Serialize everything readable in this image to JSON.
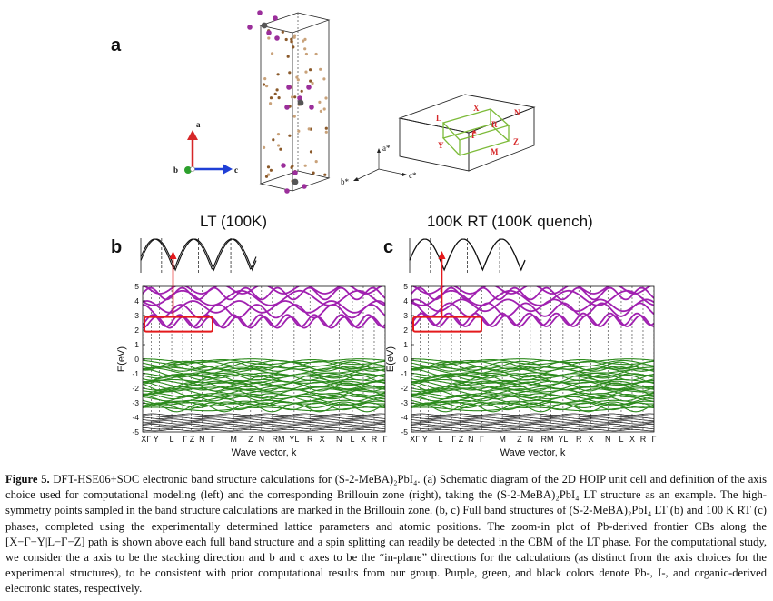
{
  "panel_a": {
    "letter": "a",
    "axes_left": {
      "a": "a",
      "b": "b",
      "c": "c"
    },
    "axes_right": {
      "a": "a*",
      "b": "b*",
      "c": "c*"
    },
    "bz_points": [
      "X",
      "N",
      "L",
      "R",
      "Γ",
      "Y",
      "M",
      "Z"
    ]
  },
  "panel_b": {
    "letter": "b",
    "title": "LT (100K)"
  },
  "panel_c": {
    "letter": "c",
    "title": "100K RT (100K quench)"
  },
  "chart_data": {
    "type": "line",
    "ylabel": "E(eV)",
    "xlabel": "Wave vector, k",
    "ylim": [
      -5,
      5
    ],
    "yticks": [
      5,
      4,
      3,
      2,
      1,
      0,
      -1,
      -2,
      -3,
      -4,
      -5
    ],
    "kpath_labels": [
      "X",
      "Γ",
      "Y",
      "L",
      "Γ",
      "Z",
      "N",
      "Γ",
      "M",
      "Z",
      "N",
      "RM",
      "YL",
      "R",
      "X",
      "N",
      "L",
      "X",
      "R",
      "Γ"
    ],
    "kpath_tick_text": [
      "XΓ Y",
      "L",
      "Γ Z",
      "N",
      "Γ",
      "M",
      "Z",
      "N",
      "RM",
      "YL",
      "R",
      "X",
      "N",
      "L",
      "X",
      "R",
      "Γ"
    ],
    "colors": {
      "Pb": "#a020b0",
      "I": "#2e8b1e",
      "organic": "#111111",
      "highlight": "#e41a1c"
    }
  },
  "caption": {
    "label": "Figure 5.",
    "text": "DFT-HSE06+SOC electronic band structure calculations for (S-2-MeBA)₂PbI₄. (a) Schematic diagram of the 2D HOIP unit cell and definition of the axis choice used for computational modeling (left) and the corresponding Brillouin zone (right), taking the (S-2-MeBA)₂PbI₄ LT structure as an example. The high-symmetry points sampled in the band structure calculations are marked in the Brillouin zone. (b, c) Full band structures of (S-2-MeBA)₂PbI₄ LT (b) and 100 K RT (c) phases, completed using the experimentally determined lattice parameters and atomic positions. The zoom-in plot of Pb-derived frontier CBs along the [X−Γ−Y|L−Γ−Z] path is shown above each full band structure and a spin splitting can readily be detected in the CBM of the LT phase. For the computational study, we consider the a axis to be the stacking direction and b and c axes to be the “in-plane” directions for the calculations (as distinct from the axis choices for the experimental structures), to be consistent with prior computational results from our group. Purple, green, and black colors denote Pb-, I-, and organic-derived electronic states, respectively."
  }
}
